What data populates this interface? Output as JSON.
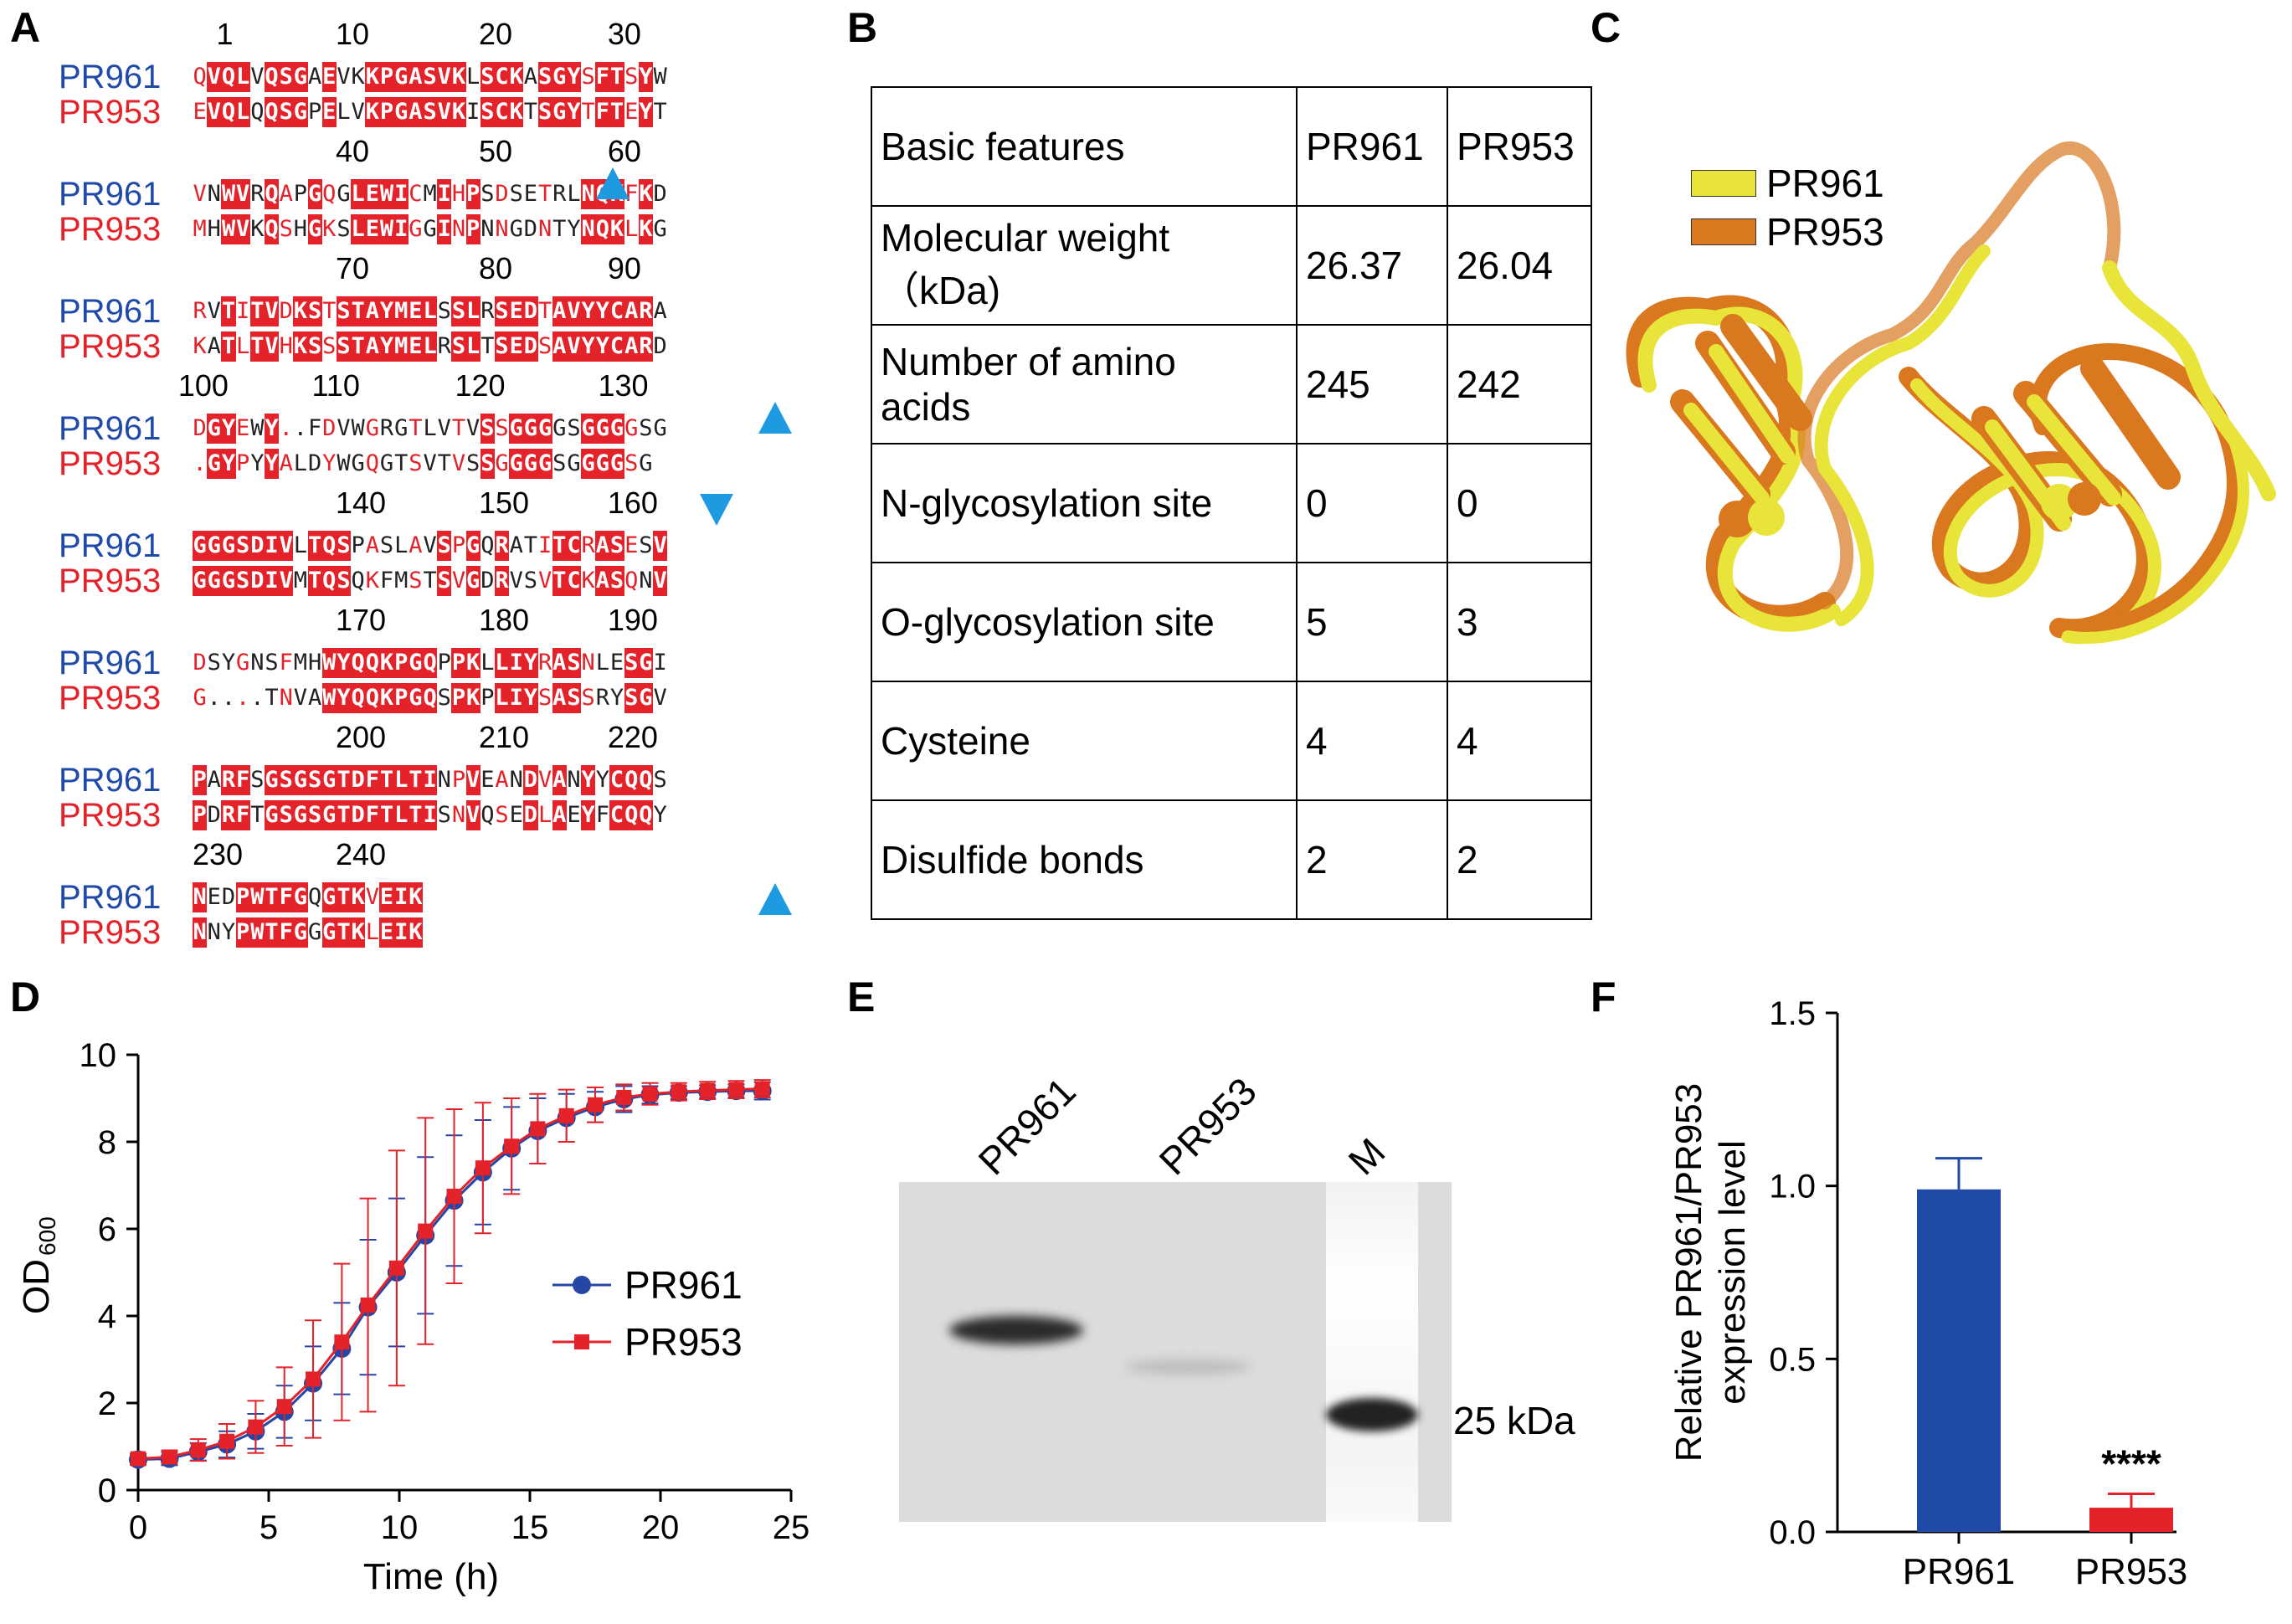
{
  "panels": {
    "a": "A",
    "b": "B",
    "c": "C",
    "d": "D",
    "e": "E",
    "f": "F"
  },
  "alignment": {
    "seq1_name": "PR961",
    "seq2_name": "PR953",
    "blocks": [
      {
        "nums": [
          "1",
          "10",
          "20",
          "30"
        ],
        "s1": "QVQLVQSGAEVKKPGASVKLSCKASGYSFTSYW",
        "s2": "EVQLQQSGPELVKPGASVKISCKTSGYTFTEYT"
      },
      {
        "nums": [
          "40",
          "50",
          "60"
        ],
        "s1": "VNWVRQAPGQGLEWICMIHPSDSETRLNQKFKD",
        "s2": "MHWVKQSHGKSLEWIGGINPNNGDNTYNQKLKG"
      },
      {
        "nums": [
          "70",
          "80",
          "90"
        ],
        "s1": "RVTITVDKSTSTAYMELSSLRSEDTAVYYCARA",
        "s2": "KATLTVHKSSSTAYMELRSLTSEDSAVYYCARD"
      },
      {
        "nums": [
          "100",
          "110",
          "120",
          "130"
        ],
        "s1": "DGYEWY..FDVWGRGTLVTVSSGGGGSGGGGSG",
        "s2": ".GYPYYALDYWGQGTSVTVSSGGGGSGGGGSG"
      },
      {
        "nums": [
          "140",
          "150",
          "160"
        ],
        "s1": "GGGSDIVLTQSPASLAVSPGQRATITCRASESV",
        "s2": "GGGSDIVMTQSQKFMSTSVGDRVSVTCKASQNV"
      },
      {
        "nums": [
          "170",
          "180",
          "190"
        ],
        "s1": "DSYGNSFMHWYQQKPGQPPKLLIYRASNLESGI",
        "s2": "G....TNVAWYQQKPGQSPKPLIYSASSRYSGV"
      },
      {
        "nums": [
          "200",
          "210",
          "220"
        ],
        "s1": "PARFSGSGSGTDFTLTINPVEANDVANYYCQQS",
        "s2": "PDRFTGSGSGTDFTLTISNVQSEDLAEYFCQQY"
      },
      {
        "nums": [
          "230",
          "240"
        ],
        "s1": "NEDPWTFGQGTKVEIK",
        "s2": "NNYPWTFGGGTKLEIK"
      }
    ]
  },
  "table": {
    "header": [
      "Basic features",
      "PR961",
      "PR953"
    ],
    "rows": [
      {
        "feature_l1": "Molecular weight",
        "feature_l2": "（kDa)",
        "v1": "26.37",
        "v2": "26.04"
      },
      {
        "feature_l1": "Number of amino",
        "feature_l2": "acids",
        "v1": "245",
        "v2": "242"
      },
      {
        "feature_l1": "N-glycosylation site",
        "feature_l2": "",
        "v1": "0",
        "v2": "0"
      },
      {
        "feature_l1": "O-glycosylation site",
        "feature_l2": "",
        "v1": "5",
        "v2": "3"
      },
      {
        "feature_l1": "Cysteine",
        "feature_l2": "",
        "v1": "4",
        "v2": "4"
      },
      {
        "feature_l1": "Disulfide bonds",
        "feature_l2": "",
        "v1": "2",
        "v2": "2"
      }
    ]
  },
  "structure": {
    "legend": [
      {
        "label": "PR961",
        "color": "#e8e43a"
      },
      {
        "label": "PR953",
        "color": "#d9781f"
      }
    ]
  },
  "gel": {
    "lanes": [
      "PR961",
      "PR953",
      "M"
    ],
    "marker": "25 kDa"
  },
  "colors": {
    "blue": "#1f4aa8",
    "red": "#e3222a",
    "arrow": "#1e9be0"
  },
  "chart_data": [
    {
      "type": "line",
      "xlabel": "Time (h)",
      "ylabel": "OD",
      "ylabel_sub": "600",
      "xlim": [
        0,
        25
      ],
      "ylim": [
        0,
        10
      ],
      "xticks": [
        "0",
        "5",
        "10",
        "15",
        "20",
        "25"
      ],
      "yticks": [
        "0",
        "2",
        "4",
        "6",
        "8",
        "10"
      ],
      "x": [
        0,
        1.2,
        2.3,
        3.4,
        4.5,
        5.6,
        6.7,
        7.8,
        8.8,
        9.9,
        11.0,
        12.1,
        13.2,
        14.3,
        15.3,
        16.4,
        17.5,
        18.6,
        19.6,
        20.7,
        21.8,
        22.9,
        23.9
      ],
      "series": [
        {
          "name": "PR961",
          "color": "#2447a6",
          "marker": "circle",
          "values": [
            0.7,
            0.72,
            0.88,
            1.05,
            1.35,
            1.8,
            2.45,
            3.25,
            4.2,
            5.0,
            5.85,
            6.65,
            7.3,
            7.85,
            8.25,
            8.55,
            8.8,
            8.98,
            9.08,
            9.13,
            9.15,
            9.17,
            9.17
          ],
          "err": [
            0.12,
            0.15,
            0.2,
            0.3,
            0.4,
            0.6,
            0.85,
            1.05,
            1.55,
            1.7,
            1.8,
            1.5,
            1.2,
            0.95,
            0.75,
            0.55,
            0.35,
            0.3,
            0.2,
            0.15,
            0.15,
            0.15,
            0.2
          ]
        },
        {
          "name": "PR953",
          "color": "#e3222a",
          "marker": "square",
          "values": [
            0.72,
            0.76,
            0.92,
            1.12,
            1.45,
            1.92,
            2.55,
            3.4,
            4.25,
            5.1,
            5.95,
            6.75,
            7.4,
            7.9,
            8.3,
            8.6,
            8.85,
            9.02,
            9.1,
            9.15,
            9.18,
            9.2,
            9.22
          ],
          "err": [
            0.12,
            0.15,
            0.25,
            0.4,
            0.6,
            0.9,
            1.35,
            1.8,
            2.45,
            2.7,
            2.6,
            2.0,
            1.5,
            1.1,
            0.8,
            0.6,
            0.4,
            0.3,
            0.25,
            0.2,
            0.2,
            0.2,
            0.2
          ]
        }
      ]
    },
    {
      "type": "bar",
      "categories": [
        "PR961",
        "PR953"
      ],
      "values": [
        0.99,
        0.07
      ],
      "errors": [
        0.09,
        0.04
      ],
      "colors": [
        "#1f4aa8",
        "#e3222a"
      ],
      "ylabel_l1": "Relative PR961/PR953",
      "ylabel_l2": "expression level",
      "ylim": [
        0,
        1.5
      ],
      "yticks": [
        "0.0",
        "0.5",
        "1.0",
        "1.5"
      ],
      "annotation": "****"
    }
  ]
}
